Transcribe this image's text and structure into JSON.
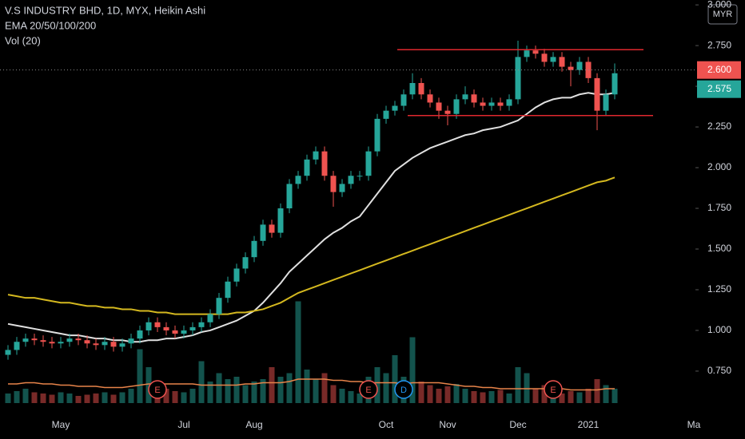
{
  "chart_data": {
    "type": "candlestick",
    "title": "V.S INDUSTRY BHD, 1D, MYX, Heikin Ashi",
    "indicators": [
      "EMA 20/50/100/200",
      "Vol (20)"
    ],
    "currency": "MYR",
    "up_color": "#26a69a",
    "down_color": "#ef5350",
    "categories": [
      null,
      null,
      null,
      null,
      null,
      null,
      "May",
      null,
      null,
      null,
      null,
      null,
      null,
      null,
      null,
      null,
      null,
      null,
      null,
      null,
      "Jul",
      null,
      null,
      null,
      null,
      null,
      null,
      null,
      "Aug",
      null,
      null,
      null,
      null,
      null,
      null,
      null,
      null,
      null,
      null,
      null,
      null,
      null,
      null,
      "Oct",
      null,
      null,
      null,
      null,
      null,
      null,
      "Nov",
      null,
      null,
      null,
      null,
      null,
      null,
      null,
      "Dec",
      null,
      null,
      null,
      null,
      null,
      null,
      null,
      "2021",
      null,
      null,
      null,
      null,
      null,
      null,
      null,
      null,
      null,
      null,
      null,
      "Ma",
      null
    ],
    "open": [
      0.85,
      0.88,
      0.93,
      0.95,
      0.94,
      0.93,
      0.92,
      0.93,
      0.95,
      0.94,
      0.92,
      0.91,
      0.93,
      0.9,
      0.92,
      0.95,
      1.0,
      1.05,
      1.02,
      1.0,
      0.98,
      1.0,
      1.02,
      1.05,
      1.1,
      1.2,
      1.3,
      1.38,
      1.45,
      1.55,
      1.65,
      1.6,
      1.75,
      1.9,
      1.95,
      2.05,
      2.1,
      1.95,
      1.85,
      1.9,
      1.95,
      1.95,
      2.1,
      2.3,
      2.35,
      2.38,
      2.45,
      2.52,
      2.45,
      2.4,
      2.35,
      2.33,
      2.42,
      2.45,
      2.4,
      2.38,
      2.4,
      2.38,
      2.42,
      2.68,
      2.72,
      2.7,
      2.65,
      2.68,
      2.62,
      2.6,
      2.65,
      2.55,
      2.35,
      2.45,
      null,
      null,
      null,
      null,
      null,
      null,
      null,
      null,
      null,
      null
    ],
    "high": [
      0.91,
      0.96,
      0.98,
      0.98,
      0.97,
      0.96,
      0.96,
      0.98,
      0.98,
      0.97,
      0.95,
      0.96,
      0.96,
      0.95,
      0.98,
      1.03,
      1.08,
      1.08,
      1.05,
      1.03,
      1.03,
      1.05,
      1.08,
      1.13,
      1.23,
      1.33,
      1.41,
      1.48,
      1.58,
      1.68,
      1.68,
      1.78,
      1.93,
      1.98,
      2.08,
      2.13,
      2.13,
      1.98,
      1.93,
      1.98,
      1.98,
      2.13,
      2.33,
      2.38,
      2.41,
      2.48,
      2.58,
      2.55,
      2.48,
      2.43,
      2.38,
      2.45,
      2.5,
      2.48,
      2.43,
      2.43,
      2.43,
      2.45,
      2.78,
      2.75,
      2.75,
      2.73,
      2.71,
      2.71,
      2.65,
      2.68,
      2.68,
      2.58,
      2.48,
      2.64,
      null,
      null,
      null,
      null,
      null,
      null,
      null,
      null,
      null,
      null
    ],
    "low": [
      0.82,
      0.85,
      0.9,
      0.91,
      0.9,
      0.89,
      0.89,
      0.9,
      0.91,
      0.89,
      0.88,
      0.88,
      0.87,
      0.87,
      0.89,
      0.92,
      0.97,
      0.99,
      0.97,
      0.95,
      0.95,
      0.97,
      0.99,
      1.02,
      1.07,
      1.17,
      1.27,
      1.35,
      1.42,
      1.52,
      1.57,
      1.57,
      1.72,
      1.87,
      1.92,
      2.02,
      1.92,
      1.76,
      1.82,
      1.87,
      1.92,
      1.92,
      2.07,
      2.27,
      2.32,
      2.35,
      2.42,
      2.42,
      2.37,
      2.3,
      2.26,
      2.3,
      2.39,
      2.37,
      2.35,
      2.35,
      2.35,
      2.35,
      2.39,
      2.65,
      2.67,
      2.62,
      2.62,
      2.59,
      2.5,
      2.57,
      2.52,
      2.23,
      2.32,
      2.42,
      null,
      null,
      null,
      null,
      null,
      null,
      null,
      null,
      null,
      null
    ],
    "close": [
      0.88,
      0.93,
      0.95,
      0.94,
      0.93,
      0.92,
      0.93,
      0.95,
      0.94,
      0.92,
      0.91,
      0.93,
      0.9,
      0.92,
      0.95,
      1.0,
      1.05,
      1.02,
      1.0,
      0.98,
      1.0,
      1.02,
      1.05,
      1.1,
      1.2,
      1.3,
      1.38,
      1.45,
      1.55,
      1.65,
      1.6,
      1.75,
      1.9,
      1.95,
      2.05,
      2.1,
      1.95,
      1.85,
      1.9,
      1.95,
      1.95,
      2.1,
      2.3,
      2.35,
      2.38,
      2.45,
      2.52,
      2.45,
      2.4,
      2.35,
      2.33,
      2.42,
      2.45,
      2.4,
      2.38,
      2.4,
      2.38,
      2.42,
      2.68,
      2.72,
      2.7,
      2.65,
      2.68,
      2.62,
      2.6,
      2.65,
      2.55,
      2.35,
      2.45,
      2.58,
      null,
      null,
      null,
      null,
      null,
      null,
      null,
      null,
      null,
      null
    ],
    "lines": [
      {
        "color": "#e0e0e0",
        "values": [
          1.04,
          1.03,
          1.02,
          1.01,
          1.0,
          0.99,
          0.98,
          0.97,
          0.97,
          0.96,
          0.95,
          0.95,
          0.94,
          0.94,
          0.93,
          0.93,
          0.94,
          0.94,
          0.95,
          0.95,
          0.96,
          0.97,
          0.99,
          1.0,
          1.02,
          1.04,
          1.06,
          1.09,
          1.12,
          1.17,
          1.23,
          1.29,
          1.36,
          1.41,
          1.46,
          1.51,
          1.56,
          1.6,
          1.63,
          1.67,
          1.7,
          1.77,
          1.84,
          1.91,
          1.98,
          2.02,
          2.06,
          2.09,
          2.12,
          2.14,
          2.16,
          2.18,
          2.2,
          2.21,
          2.23,
          2.24,
          2.25,
          2.27,
          2.29,
          2.33,
          2.37,
          2.4,
          2.42,
          2.43,
          2.43,
          2.45,
          2.46,
          2.45,
          2.45,
          2.46,
          null,
          null,
          null,
          null,
          null,
          null,
          null,
          null,
          null,
          null
        ]
      },
      {
        "color": "#d4b81f",
        "values": [
          1.22,
          1.21,
          1.2,
          1.2,
          1.19,
          1.18,
          1.17,
          1.17,
          1.16,
          1.15,
          1.15,
          1.14,
          1.14,
          1.13,
          1.13,
          1.12,
          1.12,
          1.11,
          1.11,
          1.1,
          1.1,
          1.1,
          1.1,
          1.1,
          1.1,
          1.1,
          1.11,
          1.11,
          1.12,
          1.13,
          1.15,
          1.17,
          1.2,
          1.23,
          1.25,
          1.27,
          1.29,
          1.31,
          1.33,
          1.35,
          1.37,
          1.39,
          1.41,
          1.43,
          1.45,
          1.47,
          1.49,
          1.51,
          1.53,
          1.55,
          1.57,
          1.59,
          1.61,
          1.63,
          1.65,
          1.67,
          1.69,
          1.71,
          1.73,
          1.75,
          1.77,
          1.79,
          1.81,
          1.83,
          1.85,
          1.87,
          1.89,
          1.91,
          1.92,
          1.94,
          null,
          null,
          null,
          null,
          null,
          null,
          null,
          null,
          null,
          null
        ]
      }
    ],
    "volume": {
      "ylim": [
        0,
        100
      ],
      "values": [
        8,
        10,
        12,
        9,
        8,
        7,
        9,
        8,
        6,
        7,
        8,
        9,
        7,
        9,
        12,
        45,
        30,
        15,
        12,
        10,
        9,
        12,
        35,
        18,
        25,
        20,
        22,
        15,
        18,
        20,
        30,
        22,
        25,
        85,
        28,
        20,
        25,
        15,
        12,
        10,
        8,
        22,
        30,
        25,
        40,
        22,
        55,
        18,
        15,
        12,
        14,
        16,
        12,
        10,
        9,
        10,
        11,
        8,
        30,
        25,
        12,
        15,
        10,
        8,
        10,
        9,
        12,
        20,
        15,
        12,
        null,
        null,
        null,
        null,
        null,
        null,
        null,
        null,
        null,
        null
      ],
      "ma": {
        "color": "#e8844a",
        "values": [
          16,
          16,
          17,
          17,
          16,
          16,
          15,
          15,
          14,
          14,
          14,
          13,
          13,
          13,
          14,
          15,
          16,
          16,
          16,
          16,
          16,
          16,
          15,
          15,
          15,
          15,
          15,
          16,
          16,
          17,
          17,
          17,
          18,
          20,
          20,
          20,
          20,
          19,
          19,
          18,
          18,
          17,
          17,
          17,
          17,
          16,
          17,
          17,
          17,
          17,
          16,
          15,
          14,
          14,
          13,
          13,
          12,
          12,
          12,
          12,
          12,
          12,
          12,
          12,
          11,
          11,
          11,
          11,
          12,
          12,
          null,
          null,
          null,
          null,
          null,
          null,
          null,
          null,
          null,
          null
        ]
      }
    },
    "levels": [
      {
        "value": 2.725,
        "color": "#e0282e"
      },
      {
        "value": 2.32,
        "color": "#e0282e"
      }
    ],
    "price_labels": [
      {
        "value": 2.6,
        "label": "2.600",
        "color": "#ef5350"
      },
      {
        "value": 2.575,
        "label": "2.575",
        "color": "#26a69a"
      }
    ],
    "events": [
      {
        "label": "E",
        "category_index": 17,
        "color": "#ef5350"
      },
      {
        "label": "E",
        "category_index": 41,
        "color": "#ef5350"
      },
      {
        "label": "D",
        "category_index": 45,
        "color": "#2196f3"
      },
      {
        "label": "E",
        "category_index": 62,
        "color": "#ef5350"
      }
    ],
    "ylim": [
      0.48,
      3.03
    ],
    "yticks": [
      {
        "value": 0.75,
        "label": "0.750"
      },
      {
        "value": 1.0,
        "label": "1.000"
      },
      {
        "value": 1.25,
        "label": "1.250"
      },
      {
        "value": 1.5,
        "label": "1.500"
      },
      {
        "value": 1.75,
        "label": "1.750"
      },
      {
        "value": 2.0,
        "label": "2.000"
      },
      {
        "value": 2.25,
        "label": "2.250"
      },
      {
        "value": 2.5,
        "label": "2.500"
      },
      {
        "value": 2.75,
        "label": "2.750"
      },
      {
        "value": 3.0,
        "label": "3.000"
      }
    ]
  }
}
